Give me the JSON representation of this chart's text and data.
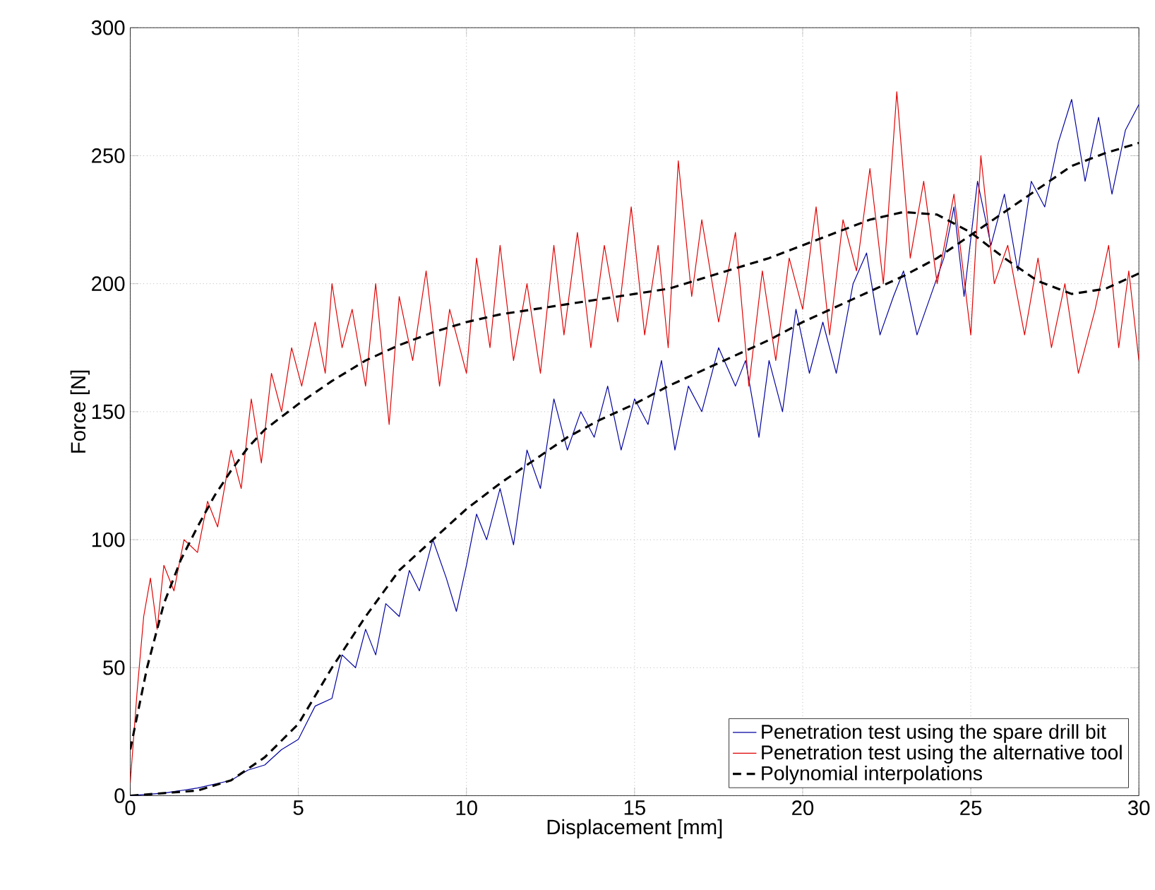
{
  "chart_data": {
    "type": "line",
    "xlabel": "Displacement [mm]",
    "ylabel": "Force [N]",
    "xlim": [
      0,
      30
    ],
    "ylim": [
      0,
      300
    ],
    "xticks": [
      0,
      5,
      10,
      15,
      20,
      25,
      30
    ],
    "yticks": [
      0,
      50,
      100,
      150,
      200,
      250,
      300
    ],
    "grid": true,
    "legend": "bottom right",
    "marker": "none",
    "series": [
      {
        "name": "Penetration test using the spare drill bit",
        "color": "#0000a0",
        "line_style": "solid",
        "x": [
          0,
          1,
          2,
          3,
          3.5,
          4,
          4.5,
          5,
          5.5,
          6,
          6.3,
          6.7,
          7,
          7.3,
          7.6,
          8,
          8.3,
          8.6,
          9,
          9.4,
          9.7,
          10,
          10.3,
          10.6,
          11,
          11.4,
          11.8,
          12.2,
          12.6,
          13,
          13.4,
          13.8,
          14.2,
          14.6,
          15,
          15.4,
          15.8,
          16.2,
          16.6,
          17,
          17.5,
          18,
          18.3,
          18.7,
          19,
          19.4,
          19.8,
          20.2,
          20.6,
          21,
          21.5,
          21.9,
          22.3,
          22.7,
          23,
          23.4,
          23.8,
          24.2,
          24.5,
          24.8,
          25.2,
          25.6,
          26,
          26.4,
          26.8,
          27.2,
          27.6,
          28,
          28.4,
          28.8,
          29.2,
          29.6,
          30
        ],
        "values": [
          0,
          1,
          3,
          6,
          10,
          12,
          18,
          22,
          35,
          38,
          55,
          50,
          65,
          55,
          75,
          70,
          88,
          80,
          100,
          85,
          72,
          90,
          110,
          100,
          120,
          98,
          135,
          120,
          155,
          135,
          150,
          140,
          160,
          135,
          155,
          145,
          170,
          135,
          160,
          150,
          175,
          160,
          170,
          140,
          170,
          150,
          190,
          165,
          185,
          165,
          200,
          212,
          180,
          195,
          205,
          180,
          195,
          210,
          230,
          195,
          240,
          215,
          235,
          205,
          240,
          230,
          255,
          272,
          240,
          265,
          235,
          260,
          270
        ]
      },
      {
        "name": "Penetration test using the alternative tool",
        "color": "#e00000",
        "line_style": "solid",
        "x": [
          0,
          0.2,
          0.4,
          0.6,
          0.8,
          1,
          1.3,
          1.6,
          2,
          2.3,
          2.6,
          3,
          3.3,
          3.6,
          3.9,
          4.2,
          4.5,
          4.8,
          5.1,
          5.5,
          5.8,
          6,
          6.3,
          6.6,
          7,
          7.3,
          7.7,
          8,
          8.4,
          8.8,
          9.2,
          9.5,
          10,
          10.3,
          10.7,
          11,
          11.4,
          11.8,
          12.2,
          12.6,
          12.9,
          13.3,
          13.7,
          14.1,
          14.5,
          14.9,
          15.3,
          15.7,
          16,
          16.3,
          16.7,
          17,
          17.5,
          18,
          18.4,
          18.8,
          19.2,
          19.6,
          20,
          20.4,
          20.8,
          21.2,
          21.6,
          22,
          22.4,
          22.8,
          23.2,
          23.6,
          24,
          24.5,
          25,
          25.3,
          25.7,
          26.1,
          26.6,
          27,
          27.4,
          27.8,
          28.2,
          28.7,
          29.1,
          29.4,
          29.7,
          30
        ],
        "values": [
          5,
          40,
          70,
          85,
          65,
          90,
          80,
          100,
          95,
          115,
          105,
          135,
          120,
          155,
          130,
          165,
          150,
          175,
          160,
          185,
          165,
          200,
          175,
          190,
          160,
          200,
          145,
          195,
          170,
          205,
          160,
          190,
          165,
          210,
          175,
          215,
          170,
          200,
          165,
          215,
          180,
          220,
          175,
          215,
          185,
          230,
          180,
          215,
          175,
          248,
          195,
          225,
          185,
          220,
          160,
          205,
          170,
          210,
          190,
          230,
          180,
          225,
          205,
          245,
          200,
          275,
          210,
          240,
          200,
          235,
          180,
          250,
          200,
          215,
          180,
          210,
          175,
          200,
          165,
          190,
          215,
          175,
          205,
          170
        ]
      },
      {
        "name": "Polynomial interpolations",
        "color": "#000000",
        "line_style": "dashed",
        "x": [
          0,
          0.5,
          1,
          1.5,
          2,
          2.5,
          3,
          3.5,
          4,
          5,
          6,
          7,
          8,
          9,
          10,
          11,
          12,
          13,
          14,
          15,
          16,
          17,
          18,
          19,
          20,
          21,
          22,
          23,
          24,
          25,
          26,
          27,
          28,
          29,
          30
        ],
        "values": [
          18,
          50,
          75,
          92,
          105,
          117,
          127,
          136,
          143,
          153,
          162,
          170,
          176,
          181,
          185,
          188,
          190,
          192,
          194,
          196,
          198,
          202,
          206,
          210,
          215,
          220,
          225,
          228,
          227,
          220,
          210,
          201,
          196,
          198,
          204
        ]
      },
      {
        "color": "#000000",
        "line_style": "dashed",
        "x": [
          0,
          2,
          3,
          4,
          5,
          6,
          7,
          8,
          9,
          10,
          11,
          12,
          13,
          14,
          15,
          16,
          17,
          18,
          19,
          20,
          21,
          22,
          23,
          24,
          25,
          26,
          27,
          28,
          29,
          30
        ],
        "values": [
          0,
          2,
          6,
          15,
          28,
          50,
          70,
          88,
          100,
          112,
          122,
          131,
          140,
          147,
          153,
          160,
          166,
          172,
          178,
          185,
          191,
          197,
          203,
          210,
          219,
          228,
          237,
          246,
          251,
          255
        ]
      }
    ]
  }
}
